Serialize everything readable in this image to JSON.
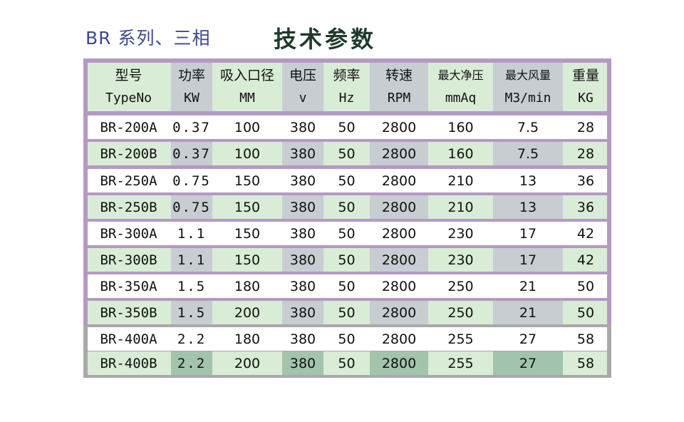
{
  "title": {
    "series": "BR 系列、三相",
    "main": "技术参数"
  },
  "table": {
    "columns": [
      {
        "name": "型号",
        "unit": "TypeNo"
      },
      {
        "name": "功率",
        "unit": "KW"
      },
      {
        "name": "吸入口径",
        "unit": "MM"
      },
      {
        "name": "电压",
        "unit": "v"
      },
      {
        "name": "频率",
        "unit": "Hz"
      },
      {
        "name": "转速",
        "unit": "RPM"
      },
      {
        "name": "最大净压",
        "unit": "mmAq"
      },
      {
        "name": "最大风量",
        "unit": "M3/min"
      },
      {
        "name": "重量",
        "unit": "KG"
      }
    ],
    "rows": [
      [
        "BR-200A",
        "0.37",
        "100",
        "380",
        "50",
        "2800",
        "160",
        "7.5",
        "28"
      ],
      [
        "BR-200B",
        "0.37",
        "100",
        "380",
        "50",
        "2800",
        "160",
        "7.5",
        "28"
      ],
      [
        "BR-250A",
        "0.75",
        "150",
        "380",
        "50",
        "2800",
        "210",
        "13",
        "36"
      ],
      [
        "BR-250B",
        "0.75",
        "150",
        "380",
        "50",
        "2800",
        "210",
        "13",
        "36"
      ],
      [
        "BR-300A",
        "1.1",
        "150",
        "380",
        "50",
        "2800",
        "230",
        "17",
        "42"
      ],
      [
        "BR-300B",
        "1.1",
        "150",
        "380",
        "50",
        "2800",
        "230",
        "17",
        "42"
      ],
      [
        "BR-350A",
        "1.5",
        "180",
        "380",
        "50",
        "2800",
        "250",
        "21",
        "50"
      ],
      [
        "BR-350B",
        "1.5",
        "200",
        "380",
        "50",
        "2800",
        "250",
        "21",
        "50"
      ],
      [
        "BR-400A",
        "2.2",
        "180",
        "380",
        "50",
        "2800",
        "255",
        "27",
        "58"
      ],
      [
        "BR-400B",
        "2.2",
        "200",
        "380",
        "50",
        "2800",
        "255",
        "27",
        "58"
      ]
    ]
  }
}
